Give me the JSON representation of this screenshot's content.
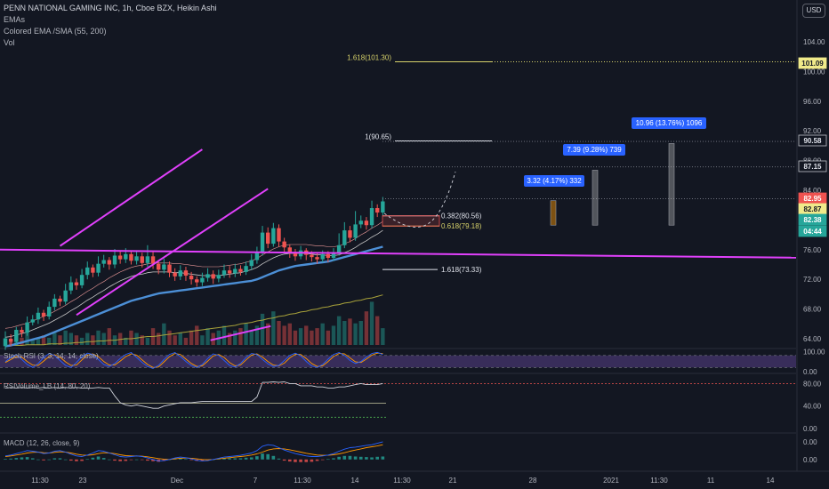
{
  "header": {
    "title": "PENN NATIONAL GAMING INC, 1h, Cboe BZX, Heikin Ashi",
    "line2": "EMAs",
    "line3": "Colored EMA /SMA (55, 200)",
    "line4": "Vol"
  },
  "currency_button": "USD",
  "colors": {
    "background": "#131722",
    "magenta": "#e040fb",
    "ema_blue": "#4c8fd6",
    "sma_olive": "#a8a23a",
    "bull": "#26a69a",
    "bear": "#ef5350",
    "fib_yellow": "#d8d36b",
    "label_blue": "#2962ff"
  },
  "chart_data": [
    {
      "type": "candlestick",
      "title": "PENN NATIONAL GAMING INC, 1h, Cboe BZX, Heikin Ashi",
      "x_ticks": [
        "11:30",
        "23",
        "Dec",
        "7",
        "11:30",
        "14",
        "11:30",
        "21",
        "28",
        "2021",
        "11:30",
        "11",
        "14"
      ],
      "y_ticks": [
        "64.00",
        "68.00",
        "72.00",
        "76.00",
        "80.00",
        "84.00",
        "88.00",
        "92.00",
        "96.00",
        "100.00",
        "104.00"
      ],
      "ylim": [
        62.8,
        106.5
      ],
      "price_labels": [
        {
          "text": "101.09",
          "value": 101.09,
          "style": "fib"
        },
        {
          "text": "90.58",
          "value": 90.58,
          "style": "neutral"
        },
        {
          "text": "87.15",
          "value": 87.15,
          "style": "neutral"
        },
        {
          "text": "82.95",
          "value": 82.95,
          "style": "bear"
        },
        {
          "text": "82.87",
          "value": 82.87,
          "style": "fib"
        },
        {
          "text": "82.38",
          "value": 82.38,
          "style": "bull"
        },
        {
          "text": "04:44",
          "value": 81.4,
          "style": "bull"
        }
      ],
      "fib_levels": [
        {
          "label": "1.618(101.30)",
          "value": 101.3,
          "style": "yellow"
        },
        {
          "label": "1(90.65)",
          "value": 90.65,
          "style": "white"
        },
        {
          "label": "0.382(80.56)",
          "value": 80.56,
          "style": "white"
        },
        {
          "label": "0.618(79.18)",
          "value": 79.18,
          "style": "yellow"
        },
        {
          "label": "1.618(73.33)",
          "value": 73.33,
          "style": "white"
        }
      ],
      "projections": [
        {
          "label": "3.32 (4.17%) 332",
          "low": 79.3,
          "high": 82.6
        },
        {
          "label": "7.39 (9.28%) 739",
          "low": 79.3,
          "high": 86.7
        },
        {
          "label": "10.96 (13.76%) 1096",
          "low": 79.3,
          "high": 90.3
        }
      ],
      "candles": [
        [
          63,
          64,
          62.5,
          65
        ],
        [
          64,
          63.6,
          63,
          64.6
        ],
        [
          63.6,
          65.2,
          63.2,
          65.6
        ],
        [
          65.2,
          64.8,
          64.2,
          65.6
        ],
        [
          64.8,
          66.2,
          64.4,
          67
        ],
        [
          66.2,
          66.6,
          65.8,
          67.2
        ],
        [
          66.6,
          67.5,
          66,
          68.2
        ],
        [
          67.5,
          67,
          66.4,
          67.9
        ],
        [
          67,
          68.3,
          66.6,
          69
        ],
        [
          68.3,
          69.4,
          67.8,
          70
        ],
        [
          69.4,
          69,
          68.4,
          69.8
        ],
        [
          69,
          70.5,
          68.6,
          71.4
        ],
        [
          70.5,
          71.6,
          70,
          72.4
        ],
        [
          71.6,
          71.2,
          70.6,
          72.1
        ],
        [
          71.2,
          72.6,
          70.8,
          73.4
        ],
        [
          72.6,
          73.6,
          72,
          74.4
        ],
        [
          73.6,
          72.9,
          72.3,
          74
        ],
        [
          72.9,
          74.1,
          72.4,
          75.1
        ],
        [
          74.1,
          74.6,
          73.6,
          75.3
        ],
        [
          74.6,
          74,
          73.3,
          75
        ],
        [
          74,
          75.2,
          73.5,
          76.1
        ],
        [
          75.2,
          74.7,
          74.1,
          75.8
        ],
        [
          74.7,
          75.4,
          74.2,
          76.2
        ],
        [
          75.4,
          74.5,
          74,
          75.9
        ],
        [
          74.5,
          75.1,
          74,
          75.8
        ],
        [
          75.1,
          74.2,
          73.6,
          75.6
        ],
        [
          74.2,
          75.1,
          73.7,
          76.6
        ],
        [
          75.1,
          74.1,
          73.4,
          75.7
        ],
        [
          74.1,
          73.3,
          72.7,
          74.6
        ],
        [
          73.3,
          74,
          72.8,
          74.8
        ],
        [
          74,
          72.9,
          72.3,
          74.4
        ],
        [
          72.9,
          72.4,
          71.8,
          73.5
        ],
        [
          72.4,
          73.2,
          71.9,
          73.9
        ],
        [
          73.2,
          72.5,
          71.8,
          73.7
        ],
        [
          72.5,
          72,
          71.3,
          73
        ],
        [
          72,
          71.6,
          71,
          72.4
        ],
        [
          71.6,
          72.2,
          71.1,
          72.9
        ],
        [
          72.2,
          72.7,
          71.7,
          73.5
        ],
        [
          72.7,
          72.1,
          71.4,
          73.2
        ],
        [
          72.1,
          72.6,
          71.6,
          73.3
        ],
        [
          72.6,
          73.2,
          72.2,
          74
        ],
        [
          73.2,
          72.8,
          72.2,
          73.8
        ],
        [
          72.8,
          73.4,
          72.3,
          74.1
        ],
        [
          73.4,
          73,
          72.5,
          73.9
        ],
        [
          73,
          73.8,
          72.6,
          74.4
        ],
        [
          73.8,
          74.6,
          73.3,
          75.4
        ],
        [
          74.6,
          75.6,
          74.1,
          76.4
        ],
        [
          75.6,
          78.3,
          75.2,
          79.2
        ],
        [
          78.3,
          76.8,
          76.2,
          79
        ],
        [
          76.8,
          78.9,
          76.4,
          79.6
        ],
        [
          78.9,
          77.1,
          76.4,
          79.4
        ],
        [
          77.1,
          76.3,
          75.7,
          77.6
        ],
        [
          76.3,
          75.6,
          74.9,
          76.7
        ],
        [
          75.6,
          75.1,
          74.5,
          76.1
        ],
        [
          75.1,
          75.9,
          74.7,
          76.5
        ],
        [
          75.9,
          75.3,
          74.6,
          76.2
        ],
        [
          75.3,
          75,
          74.4,
          75.8
        ],
        [
          75,
          74.7,
          74.1,
          75.5
        ],
        [
          74.7,
          75.4,
          74.3,
          75.9
        ],
        [
          75.4,
          74.9,
          74.3,
          75.8
        ],
        [
          74.9,
          75.6,
          74.5,
          76.2
        ],
        [
          75.6,
          76.6,
          75.2,
          78.2
        ],
        [
          76.6,
          78.6,
          76.2,
          79.7
        ],
        [
          78.6,
          77.6,
          77,
          79.2
        ],
        [
          77.6,
          79.4,
          77.2,
          81.2
        ],
        [
          79.4,
          79.9,
          78.9,
          80.6
        ],
        [
          79.9,
          79.3,
          78.7,
          80.4
        ],
        [
          79.3,
          81.6,
          78.9,
          82.6
        ],
        [
          81.6,
          81,
          80.4,
          82.1
        ],
        [
          81,
          82.5,
          80.6,
          83.1
        ]
      ],
      "volume": [
        3,
        2,
        4,
        3,
        5,
        2,
        3,
        4,
        3,
        5,
        4,
        6,
        5,
        4,
        3,
        5,
        4,
        6,
        5,
        7,
        4,
        5,
        3,
        6,
        5,
        4,
        3,
        7,
        5,
        9,
        6,
        4,
        5,
        3,
        6,
        8,
        4,
        7,
        5,
        6,
        8,
        5,
        6,
        7,
        9,
        6,
        8,
        13,
        9,
        14,
        10,
        8,
        9,
        6,
        7,
        8,
        6,
        7,
        9,
        6,
        8,
        12,
        10,
        11,
        9,
        10,
        14,
        18,
        12,
        7
      ],
      "ema_fast": [
        64.2,
        64.3,
        64.5,
        64.7,
        64.9,
        65.2,
        65.5,
        65.8,
        66.1,
        66.5,
        66.9,
        67.3,
        67.8,
        68.2,
        68.7,
        69.2,
        69.6,
        70.1,
        70.5,
        71,
        71.4,
        71.8,
        72.1,
        72.4,
        72.6,
        72.7,
        72.9,
        73,
        73,
        73,
        73,
        72.9,
        72.9,
        72.8,
        72.7,
        72.6,
        72.5,
        72.5,
        72.5,
        72.5,
        72.6,
        72.7,
        72.8,
        72.9,
        73.1,
        73.3,
        73.6,
        74.1,
        74.5,
        74.9,
        75.2,
        75.4,
        75.5,
        75.5,
        75.5,
        75.5,
        75.4,
        75.3,
        75.3,
        75.2,
        75.2,
        75.3,
        75.6,
        75.9,
        76.3,
        76.8,
        77.2,
        77.7,
        78.1,
        78.6
      ],
      "ema_blue": [
        63,
        63.1,
        63.3,
        63.5,
        63.7,
        63.9,
        64.1,
        64.3,
        64.6,
        64.9,
        65.2,
        65.5,
        65.8,
        66.1,
        66.4,
        66.7,
        67,
        67.3,
        67.6,
        67.9,
        68.2,
        68.5,
        68.8,
        69.1,
        69.3,
        69.5,
        69.7,
        69.9,
        70.1,
        70.2,
        70.3,
        70.4,
        70.5,
        70.6,
        70.7,
        70.8,
        70.9,
        71,
        71.1,
        71.2,
        71.3,
        71.4,
        71.5,
        71.6,
        71.7,
        71.8,
        72,
        72.3,
        72.6,
        72.9,
        73.2,
        73.4,
        73.6,
        73.8,
        73.9,
        74,
        74.1,
        74.2,
        74.3,
        74.4,
        74.6,
        74.8,
        75,
        75.2,
        75.4,
        75.6,
        75.8,
        76,
        76.2,
        76.4
      ],
      "sma_200": [
        63.1,
        63.1,
        63.1,
        63.1,
        63.2,
        63.2,
        63.2,
        63.2,
        63.3,
        63.3,
        63.3,
        63.4,
        63.4,
        63.5,
        63.5,
        63.6,
        63.6,
        63.7,
        63.7,
        63.8,
        63.8,
        63.9,
        64,
        64,
        64.1,
        64.2,
        64.3,
        64.3,
        64.4,
        64.5,
        64.6,
        64.7,
        64.8,
        64.9,
        65,
        65.1,
        65.2,
        65.3,
        65.4,
        65.5,
        65.6,
        65.7,
        65.8,
        66,
        66.1,
        66.2,
        66.4,
        66.5,
        66.7,
        66.8,
        67,
        67.1,
        67.3,
        67.4,
        67.6,
        67.7,
        67.9,
        68,
        68.2,
        68.3,
        68.5,
        68.6,
        68.8,
        68.9,
        69.1,
        69.2,
        69.4,
        69.5,
        69.7,
        69.9
      ],
      "trendlines": [
        {
          "name": "upper-channel",
          "from": [
            10,
            76.5
          ],
          "to": [
            36,
            89.5
          ]
        },
        {
          "name": "lower-channel",
          "from": [
            13,
            67.2
          ],
          "to": [
            48,
            84.2
          ]
        },
        {
          "name": "horizontal-support",
          "from": [
            0,
            76
          ],
          "to": [
            59,
            75.4
          ]
        },
        {
          "name": "future-support",
          "from": [
            37.5,
            63.8
          ],
          "to": [
            48.5,
            65.7
          ]
        }
      ]
    },
    {
      "type": "line",
      "title": "Stoch RSI (3, 3, 14, 14, close)",
      "y_ticks": [
        "100.00",
        "0.00"
      ],
      "ylim": [
        -10,
        115
      ],
      "band": [
        20,
        80
      ],
      "k": [
        50,
        70,
        85,
        60,
        35,
        20,
        40,
        70,
        90,
        80,
        55,
        30,
        20,
        45,
        75,
        92,
        85,
        60,
        35,
        25,
        40,
        65,
        85,
        95,
        70,
        45,
        25,
        15,
        30,
        60,
        85,
        95,
        75,
        50,
        30,
        20,
        35,
        65,
        88,
        80,
        55,
        30,
        22,
        40,
        70,
        90,
        85,
        60,
        38,
        25,
        30,
        55,
        80,
        92,
        78,
        50,
        28,
        20,
        35,
        62,
        85,
        95,
        80,
        55,
        40,
        50,
        72,
        90,
        96,
        85
      ],
      "d": [
        45,
        60,
        75,
        72,
        50,
        32,
        30,
        52,
        75,
        84,
        72,
        48,
        30,
        32,
        58,
        82,
        88,
        74,
        50,
        32,
        32,
        52,
        74,
        88,
        82,
        58,
        35,
        20,
        22,
        48,
        74,
        90,
        85,
        62,
        40,
        25,
        28,
        52,
        78,
        85,
        70,
        45,
        28,
        32,
        58,
        82,
        88,
        72,
        50,
        32,
        28,
        42,
        68,
        86,
        85,
        65,
        40,
        25,
        28,
        50,
        75,
        90,
        88,
        68,
        48,
        45,
        62,
        82,
        92,
        90
      ]
    },
    {
      "type": "line",
      "title": "RSIVolume_LB (14, 80, 20)",
      "y_ticks": [
        "80.00",
        "40.00",
        "0.00"
      ],
      "ylim": [
        -8,
        98
      ],
      "levels": [
        80,
        45,
        20
      ],
      "rsi": [
        72,
        73,
        72,
        73,
        72,
        73,
        72,
        73,
        72,
        73,
        72,
        73,
        72,
        73,
        72,
        72,
        72,
        73,
        72,
        72,
        58,
        46,
        42,
        40,
        42,
        40,
        38,
        36,
        36,
        40,
        42,
        44,
        46,
        46,
        46,
        47,
        48,
        48,
        48,
        48,
        48,
        48,
        48,
        48,
        48,
        48,
        56,
        82,
        82,
        83,
        82,
        83,
        80,
        80,
        76,
        76,
        76,
        74,
        74,
        72,
        72,
        74,
        74,
        76,
        78,
        80,
        78,
        78,
        78,
        80
      ]
    },
    {
      "type": "line",
      "title": "MACD (12, 26, close, 9)",
      "y_ticks": [
        "0.00"
      ],
      "ylim": [
        -0.4,
        0.9
      ],
      "macd": [
        0.12,
        0.15,
        0.2,
        0.25,
        0.3,
        0.28,
        0.25,
        0.2,
        0.22,
        0.28,
        0.3,
        0.25,
        0.18,
        0.12,
        0.1,
        0.15,
        0.22,
        0.3,
        0.28,
        0.22,
        0.16,
        0.1,
        0.08,
        0.1,
        0.12,
        0.1,
        0.05,
        0,
        -0.05,
        -0.04,
        0,
        0.05,
        0.08,
        0.06,
        0.02,
        -0.03,
        -0.05,
        -0.04,
        0,
        0.04,
        0.08,
        0.1,
        0.12,
        0.14,
        0.18,
        0.22,
        0.3,
        0.45,
        0.5,
        0.48,
        0.4,
        0.32,
        0.26,
        0.2,
        0.16,
        0.12,
        0.1,
        0.1,
        0.12,
        0.15,
        0.2,
        0.28,
        0.35,
        0.4,
        0.42,
        0.45,
        0.48,
        0.5,
        0.55,
        0.6
      ],
      "signal": [
        0.1,
        0.12,
        0.15,
        0.18,
        0.22,
        0.24,
        0.25,
        0.23,
        0.22,
        0.24,
        0.26,
        0.25,
        0.22,
        0.18,
        0.15,
        0.14,
        0.16,
        0.2,
        0.23,
        0.22,
        0.2,
        0.16,
        0.13,
        0.12,
        0.12,
        0.11,
        0.09,
        0.06,
        0.03,
        0.01,
        0,
        0.02,
        0.04,
        0.05,
        0.04,
        0.02,
        0,
        -0.01,
        0,
        0.02,
        0.04,
        0.06,
        0.08,
        0.1,
        0.12,
        0.15,
        0.19,
        0.25,
        0.32,
        0.36,
        0.37,
        0.36,
        0.33,
        0.29,
        0.25,
        0.21,
        0.18,
        0.15,
        0.14,
        0.14,
        0.16,
        0.19,
        0.23,
        0.28,
        0.32,
        0.36,
        0.4,
        0.43,
        0.46,
        0.5
      ]
    }
  ]
}
